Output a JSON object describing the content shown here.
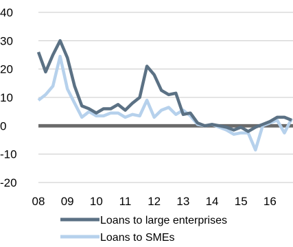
{
  "chart_data": {
    "type": "line",
    "title": "",
    "xlabel": "",
    "ylabel": "",
    "ylim": [
      -20,
      40
    ],
    "y_ticks": [
      "40",
      "30",
      "20",
      "10",
      "0",
      "-10",
      "-20"
    ],
    "x_ticks": [
      "08",
      "09",
      "10",
      "11",
      "12",
      "13",
      "14",
      "15",
      "16"
    ],
    "x_start_year": 2008,
    "x_end": 2016.75,
    "grid": "horizontal",
    "zero_line_color": "#6b6b6b",
    "legend_position": "bottom",
    "series": [
      {
        "name": "Loans to large enterprises",
        "color": "#5b7184",
        "x": [
          2008.0,
          2008.25,
          2008.5,
          2008.75,
          2009.0,
          2009.25,
          2009.5,
          2009.75,
          2010.0,
          2010.25,
          2010.5,
          2010.75,
          2011.0,
          2011.25,
          2011.5,
          2011.75,
          2012.0,
          2012.25,
          2012.5,
          2012.75,
          2013.0,
          2013.25,
          2013.5,
          2013.75,
          2014.0,
          2014.25,
          2014.5,
          2014.75,
          2015.0,
          2015.25,
          2015.5,
          2015.75,
          2016.0,
          2016.25,
          2016.5,
          2016.75
        ],
        "values": [
          26,
          19,
          25,
          30,
          24,
          14,
          7,
          6,
          4.5,
          6,
          6,
          7.5,
          5.5,
          8,
          10,
          21,
          18,
          12.5,
          11,
          11.5,
          4,
          4.5,
          1,
          0,
          0.5,
          0,
          -0.5,
          -1.5,
          -0.5,
          -2,
          -0.5,
          0.5,
          1.5,
          3,
          3,
          2
        ]
      },
      {
        "name": "Loans to SMEs",
        "color": "#b6d1ec",
        "x": [
          2008.0,
          2008.25,
          2008.5,
          2008.75,
          2009.0,
          2009.25,
          2009.5,
          2009.75,
          2010.0,
          2010.25,
          2010.5,
          2010.75,
          2011.0,
          2011.25,
          2011.5,
          2011.75,
          2012.0,
          2012.25,
          2012.5,
          2012.75,
          2013.0,
          2013.25,
          2013.5,
          2013.75,
          2014.0,
          2014.25,
          2014.5,
          2014.75,
          2015.0,
          2015.25,
          2015.5,
          2015.75,
          2016.0,
          2016.25,
          2016.5,
          2016.75
        ],
        "values": [
          9,
          11,
          14,
          24.5,
          13,
          8,
          3,
          5,
          3.5,
          3.5,
          4.5,
          4.5,
          3,
          4,
          3.5,
          9,
          3,
          5.5,
          6.5,
          4,
          5.5,
          3.5,
          0.5,
          0,
          0.5,
          -0.5,
          -1.5,
          -3,
          -2.5,
          -2.5,
          -8.5,
          0,
          1,
          2,
          -2.5,
          2.5
        ]
      }
    ]
  }
}
